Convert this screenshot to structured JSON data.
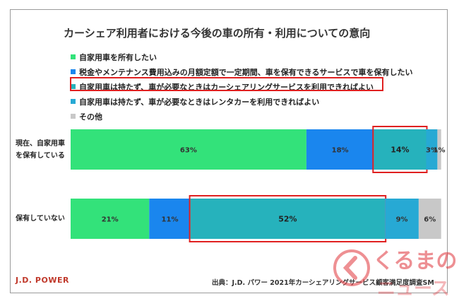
{
  "title": "カーシェア利用者における今後の車の所有・利用についての意向",
  "legend": [
    {
      "label": "自家用車を所有したい",
      "color": "#33e27a"
    },
    {
      "label": "税金やメンテナンス費用込みの月額定額で一定期間、車を保有できるサービスで車を保有したい",
      "color": "#1a86ee"
    },
    {
      "label": "自家用車は持たず、車が必要なときはカーシェアリングサービスを利用できればよい",
      "color": "#26b2bc"
    },
    {
      "label": "自家用車は持たず、車が必要なときはレンタカーを利用できればよい",
      "color": "#27a9d4"
    },
    {
      "label": "その他",
      "color": "#c8c8c8"
    }
  ],
  "row_labels": [
    {
      "line1": "現在、自家用車",
      "line2": "を保有している"
    },
    {
      "line1": "保有していない",
      "line2": ""
    }
  ],
  "chart_data": {
    "type": "bar",
    "orientation": "horizontal",
    "stacked": true,
    "normalized_to": 100,
    "categories": [
      "現在、自家用車を保有している",
      "保有していない"
    ],
    "series": [
      {
        "name": "自家用車を所有したい",
        "values": [
          63,
          21
        ],
        "labels": [
          "63%",
          "21%"
        ],
        "color": "#33e27a"
      },
      {
        "name": "税金やメンテナンス費用込みの月額定額で一定期間、車を保有できるサービスで車を保有したい",
        "values": [
          18,
          11
        ],
        "labels": [
          "18%",
          "11%"
        ],
        "color": "#1a86ee"
      },
      {
        "name": "自家用車は持たず、車が必要なときはカーシェアリングサービスを利用できればよい",
        "values": [
          14,
          52
        ],
        "labels": [
          "14%",
          "52%"
        ],
        "color": "#26b2bc"
      },
      {
        "name": "自家用車は持たず、車が必要なときはレンタカーを利用できればよい",
        "values": [
          3,
          9
        ],
        "labels": [
          "3%",
          "9%"
        ],
        "color": "#27a9d4"
      },
      {
        "name": "その他",
        "values": [
          1,
          6
        ],
        "labels": [
          "1%",
          "6%"
        ],
        "color": "#c8c8c8"
      }
    ],
    "highlight": {
      "series_index": 2,
      "color": "#e02020"
    },
    "legend_position": "top"
  },
  "footer": {
    "brand": "J.D. POWER",
    "source": "出典：J.D. パワー 2021年カーシェアリングサービス顧客満足度調査SM",
    "brand_color": "#c0392b"
  },
  "watermark": {
    "text": "くるまの",
    "text2": "ニュース",
    "color": "#e0343b"
  }
}
